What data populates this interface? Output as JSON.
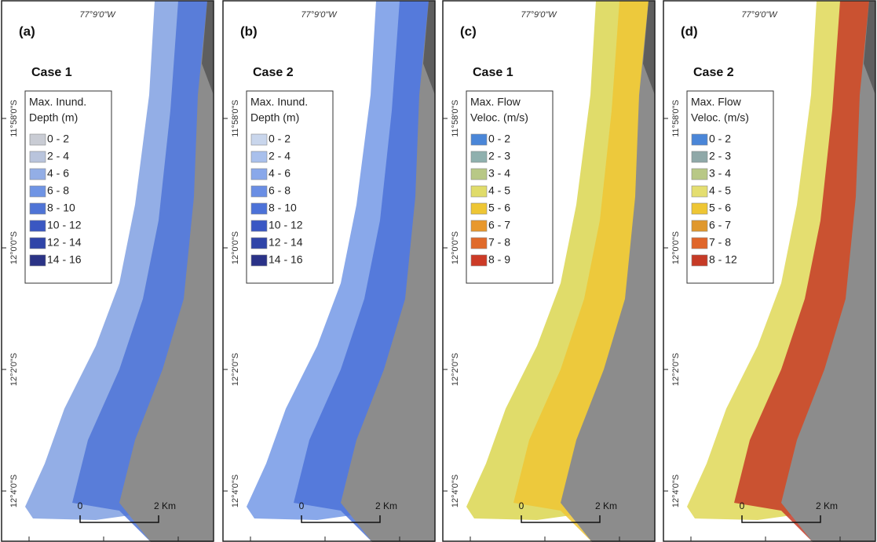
{
  "panels": [
    {
      "label": "(a)",
      "lon_label": "77°9'0\"W",
      "case": "Case 1",
      "legend_title": [
        "Max. Inund.",
        "Depth (m)"
      ],
      "items": [
        {
          "label": "0 - 2",
          "color": "#c9ccd4"
        },
        {
          "label": "2 - 4",
          "color": "#b9c4dc"
        },
        {
          "label": "4 - 6",
          "color": "#93aee6"
        },
        {
          "label": "6 - 8",
          "color": "#6f94e4"
        },
        {
          "label": "8 - 10",
          "color": "#4f74d6"
        },
        {
          "label": "10 - 12",
          "color": "#3a57c2"
        },
        {
          "label": "12 - 14",
          "color": "#2f44a8"
        },
        {
          "label": "14 - 16",
          "color": "#2b3386"
        }
      ],
      "lat_labels": [
        "11°58'0\"S",
        "12°0'0\"S",
        "12°2'0\"S",
        "12°4'0\"S"
      ],
      "scale": [
        "0",
        "2 Km"
      ]
    },
    {
      "label": "(b)",
      "lon_label": "77°9'0\"W",
      "case": "Case 2",
      "legend_title": [
        "Max. Inund.",
        "Depth (m)"
      ],
      "items": [
        {
          "label": "0 - 2",
          "color": "#c9d6ec"
        },
        {
          "label": "2 - 4",
          "color": "#a9c0ec"
        },
        {
          "label": "4 - 6",
          "color": "#89a8ea"
        },
        {
          "label": "6 - 8",
          "color": "#6a8ee4"
        },
        {
          "label": "8 - 10",
          "color": "#4c72d8"
        },
        {
          "label": "10 - 12",
          "color": "#3a57c4"
        },
        {
          "label": "12 - 14",
          "color": "#2f44a8"
        },
        {
          "label": "14 - 16",
          "color": "#2a3288"
        }
      ],
      "lat_labels": [
        "11°58'0\"S",
        "12°0'0\"S",
        "12°2'0\"S",
        "12°4'0\"S"
      ],
      "scale": [
        "0",
        "2 Km"
      ]
    },
    {
      "label": "(c)",
      "lon_label": "77°9'0\"W",
      "case": "Case 1",
      "legend_title": [
        "Max. Flow",
        "Veloc. (m/s)"
      ],
      "items": [
        {
          "label": "0 - 2",
          "color": "#4a86d8"
        },
        {
          "label": "2 - 3",
          "color": "#8fb0ae"
        },
        {
          "label": "3 - 4",
          "color": "#b8c886"
        },
        {
          "label": "4 - 5",
          "color": "#e0dc6a"
        },
        {
          "label": "5 - 6",
          "color": "#eec634"
        },
        {
          "label": "6 - 7",
          "color": "#e8982c"
        },
        {
          "label": "7 - 8",
          "color": "#e06a2a"
        },
        {
          "label": "8 - 9",
          "color": "#cc3a26"
        }
      ],
      "lat_labels": [
        "11°58'0\"S",
        "12°0'0\"S",
        "12°2'0\"S",
        "12°4'0\"S"
      ],
      "scale": [
        "0",
        "2 Km"
      ]
    },
    {
      "label": "(d)",
      "lon_label": "77°9'0\"W",
      "case": "Case 2",
      "legend_title": [
        "Max. Flow",
        "Veloc. (m/s)"
      ],
      "items": [
        {
          "label": "0 - 2",
          "color": "#4a86d8"
        },
        {
          "label": "2 - 3",
          "color": "#8fa8a8"
        },
        {
          "label": "3 - 4",
          "color": "#b8c886"
        },
        {
          "label": "4 - 5",
          "color": "#e4de70"
        },
        {
          "label": "5 - 6",
          "color": "#eec634"
        },
        {
          "label": "6 - 7",
          "color": "#e0982c"
        },
        {
          "label": "7 - 8",
          "color": "#e0662a"
        },
        {
          "label": "8 - 12",
          "color": "#c63a26"
        }
      ],
      "lat_labels": [
        "11°58'0\"S",
        "12°0'0\"S",
        "12°2'0\"S",
        "12°4'0\"S"
      ],
      "scale": [
        "0",
        "2 Km"
      ]
    }
  ]
}
